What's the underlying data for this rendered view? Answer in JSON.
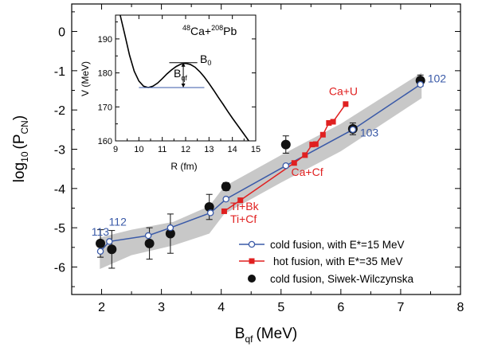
{
  "chart_data": [
    {
      "type": "line",
      "title": "",
      "xlabel": "B",
      "xlabel_sub": "qf",
      "xlabel_unit": "(MeV)",
      "ylabel": "log",
      "ylabel_sub": "10",
      "ylabel_arg": "(P",
      "ylabel_arg_sub": "CN",
      "ylabel_close": ")",
      "xlim": [
        1.5,
        8
      ],
      "ylim": [
        -6.7,
        0.7
      ],
      "xticks": [
        "2",
        "3",
        "4",
        "5",
        "6",
        "7",
        "8"
      ],
      "yticks": [
        "0",
        "-1",
        "-2",
        "-3",
        "-4",
        "-5",
        "-6"
      ],
      "band": {
        "upper": [
          [
            1.97,
            -5.25
          ],
          [
            2.5,
            -5.05
          ],
          [
            3.2,
            -4.85
          ],
          [
            3.8,
            -4.45
          ],
          [
            4.05,
            -3.95
          ],
          [
            5.0,
            -3.15
          ],
          [
            6.0,
            -2.35
          ],
          [
            7.35,
            -1.05
          ]
        ],
        "lower": [
          [
            1.97,
            -6.05
          ],
          [
            2.5,
            -5.7
          ],
          [
            3.2,
            -5.45
          ],
          [
            3.8,
            -5.15
          ],
          [
            4.05,
            -4.65
          ],
          [
            5.0,
            -3.85
          ],
          [
            6.0,
            -3.05
          ],
          [
            7.35,
            -1.7
          ]
        ],
        "color": "#c8c8c8"
      },
      "series": [
        {
          "name": "cold fusion, with E*=15 MeV",
          "color": "#3a5aa8",
          "marker": "open-circle",
          "points": [
            [
              1.98,
              -5.6
            ],
            [
              2.13,
              -5.35
            ],
            [
              2.78,
              -5.2
            ],
            [
              3.15,
              -5.0
            ],
            [
              3.82,
              -4.62
            ],
            [
              4.08,
              -4.27
            ],
            [
              5.08,
              -3.42
            ],
            [
              6.2,
              -2.5
            ],
            [
              7.33,
              -1.35
            ]
          ]
        },
        {
          "name": "hot fusion,  with E*=35 MeV",
          "color": "#e02020",
          "marker": "square",
          "points": [
            [
              4.05,
              -4.58
            ],
            [
              4.32,
              -4.3
            ],
            [
              5.22,
              -3.35
            ],
            [
              5.4,
              -3.15
            ],
            [
              5.52,
              -2.88
            ],
            [
              5.58,
              -2.87
            ],
            [
              5.7,
              -2.63
            ],
            [
              5.8,
              -2.33
            ],
            [
              5.87,
              -2.3
            ],
            [
              6.08,
              -1.85
            ]
          ]
        },
        {
          "name": "cold fusion, Siwek-Wilczynska",
          "color": "#111111",
          "marker": "filled-circle",
          "points": [
            {
              "x": 1.98,
              "y": -5.4,
              "err": 0.35
            },
            {
              "x": 2.17,
              "y": -5.55,
              "err": 0.48
            },
            {
              "x": 2.8,
              "y": -5.4,
              "err": 0.4
            },
            {
              "x": 3.15,
              "y": -5.15,
              "err": 0.5
            },
            {
              "x": 3.8,
              "y": -4.47,
              "err": 0.32
            },
            {
              "x": 4.08,
              "y": -3.95,
              "err": 0.1
            },
            {
              "x": 5.08,
              "y": -2.88,
              "err": 0.22
            },
            {
              "x": 6.2,
              "y": -2.48,
              "err": 0.15
            },
            {
              "x": 7.33,
              "y": -1.25,
              "err": 0.14
            }
          ]
        }
      ],
      "annotations": [
        {
          "text": "113",
          "x": 1.83,
          "y": -5.2,
          "color": "#3a5aa8"
        },
        {
          "text": "112",
          "x": 2.12,
          "y": -4.95,
          "color": "#3a5aa8"
        },
        {
          "text": "103",
          "x": 6.32,
          "y": -2.68,
          "color": "#3a5aa8"
        },
        {
          "text": "102",
          "x": 7.45,
          "y": -1.3,
          "color": "#3a5aa8"
        },
        {
          "text": "Ca+U",
          "x": 5.8,
          "y": -1.62,
          "color": "#e02020"
        },
        {
          "text": "Ca+Cf",
          "x": 5.17,
          "y": -3.68,
          "color": "#e02020"
        },
        {
          "text": "Ti+Bk",
          "x": 4.15,
          "y": -4.55,
          "color": "#e02020"
        },
        {
          "text": "Ti+Cf",
          "x": 4.15,
          "y": -4.88,
          "color": "#e02020"
        }
      ],
      "legend": {
        "placement": "bottom-right"
      }
    },
    {
      "type": "line",
      "xlabel": "R (fm)",
      "ylabel": "V (MeV)",
      "xlim": [
        9,
        15
      ],
      "ylim": [
        160,
        197
      ],
      "xticks": [
        "9",
        "10",
        "11",
        "12",
        "13",
        "14",
        "15"
      ],
      "yticks": [
        "160",
        "170",
        "180",
        "190"
      ],
      "reaction": {
        "pre": "48",
        "a": "Ca+",
        "mid": "208",
        "b": "Pb"
      },
      "curve": [
        [
          9.2,
          197
        ],
        [
          9.4,
          191.2
        ],
        [
          9.6,
          185.2
        ],
        [
          9.8,
          180.5
        ],
        [
          10.0,
          177.6
        ],
        [
          10.2,
          176.1
        ],
        [
          10.4,
          175.7
        ],
        [
          10.6,
          176.1
        ],
        [
          10.8,
          177.0
        ],
        [
          11.0,
          178.3
        ],
        [
          11.2,
          179.7
        ],
        [
          11.4,
          180.9
        ],
        [
          11.6,
          181.9
        ],
        [
          11.8,
          182.6
        ],
        [
          12.0,
          182.8
        ],
        [
          12.2,
          182.5
        ],
        [
          12.4,
          181.7
        ],
        [
          12.6,
          180.4
        ],
        [
          12.8,
          178.8
        ],
        [
          13.0,
          176.9
        ],
        [
          13.2,
          174.9
        ],
        [
          13.4,
          172.8
        ],
        [
          13.6,
          170.8
        ],
        [
          13.8,
          168.7
        ],
        [
          14.0,
          166.7
        ],
        [
          14.2,
          164.8
        ],
        [
          14.4,
          162.9
        ],
        [
          14.6,
          161.0
        ],
        [
          14.7,
          160.0
        ]
      ],
      "barrier_top": 183,
      "well_bottom": 175.7,
      "B0_label": "B",
      "B0_sub": "0",
      "Bqf_label": "B",
      "Bqf_sub": "qf"
    }
  ]
}
